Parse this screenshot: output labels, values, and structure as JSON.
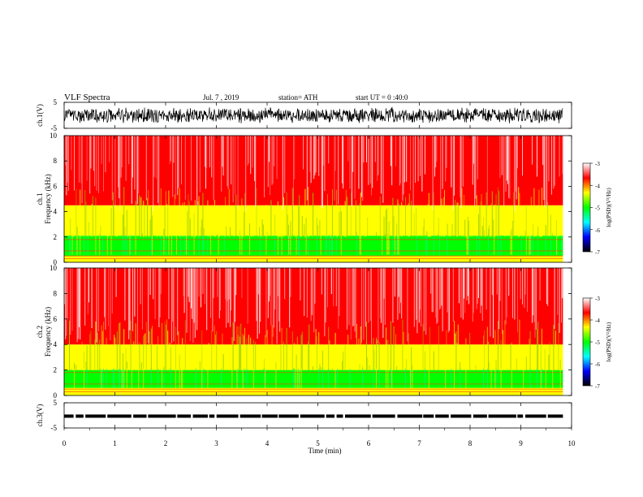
{
  "header": {
    "title": "VLF Spectra",
    "date": "Jul. 7 , 2019",
    "station": "station= ATH",
    "start": "start UT = 0 :40:0"
  },
  "chart_data": [
    {
      "type": "line",
      "name": "ch1-waveform",
      "ylabel": "ch.1(V)",
      "ylim": [
        -5,
        5
      ],
      "xlim": [
        0,
        10
      ],
      "yticks": [
        "5",
        "-5"
      ],
      "envelope_v": 3.2,
      "color": "#000000"
    },
    {
      "type": "heatmap",
      "name": "ch1-spectrogram",
      "ylabel": "ch.1 Frequency (kHz)",
      "ylim": [
        0,
        10
      ],
      "yticks": [
        "0",
        "2",
        "4",
        "6",
        "8",
        "10"
      ],
      "xlim": [
        0,
        9.83
      ],
      "colorbar": {
        "label": "log(PSD)(V²/Hz)",
        "range": [
          -7,
          -3
        ],
        "ticks": [
          "-3",
          "-4",
          "-5",
          "-6",
          "-7"
        ]
      },
      "bands_khz": [
        {
          "from": 0,
          "to": 0.5,
          "level": -4.2
        },
        {
          "from": 0.5,
          "to": 2.1,
          "level": -5.2
        },
        {
          "from": 2.1,
          "to": 4.5,
          "level": -4.5
        },
        {
          "from": 4.5,
          "to": 10,
          "level": -3.8
        }
      ]
    },
    {
      "type": "heatmap",
      "name": "ch2-spectrogram",
      "ylabel": "ch.2 Frequency (kHz)",
      "ylim": [
        0,
        10
      ],
      "yticks": [
        "0",
        "2",
        "4",
        "6",
        "8",
        "10"
      ],
      "xlim": [
        0,
        9.83
      ],
      "colorbar": {
        "label": "log(PSD)(V²/Hz)",
        "range": [
          -7,
          -3
        ],
        "ticks": [
          "-3",
          "-4",
          "-5",
          "-6",
          "-7"
        ]
      },
      "bands_khz": [
        {
          "from": 0,
          "to": 0.6,
          "level": -4.4
        },
        {
          "from": 0.6,
          "to": 2.0,
          "level": -4.9
        },
        {
          "from": 2.0,
          "to": 4.0,
          "level": -4.3
        },
        {
          "from": 4.0,
          "to": 10,
          "level": -3.7
        }
      ]
    },
    {
      "type": "line",
      "name": "ch3-waveform",
      "ylabel": "ch.3(V)",
      "ylim": [
        -5,
        5
      ],
      "xlim": [
        0,
        10
      ],
      "yticks": [
        "5",
        "-5"
      ],
      "level_v": -0.3,
      "color": "#000000"
    }
  ],
  "xaxis": {
    "label": "Time (min)",
    "ticks": [
      "0",
      "1",
      "2",
      "3",
      "4",
      "5",
      "6",
      "7",
      "8",
      "9",
      "10"
    ],
    "range": [
      0,
      10
    ]
  },
  "colors": {
    "colormap": [
      "#000000",
      "#0000ff",
      "#00ffff",
      "#00ff00",
      "#ffff00",
      "#ff0000",
      "#ffffff"
    ]
  }
}
